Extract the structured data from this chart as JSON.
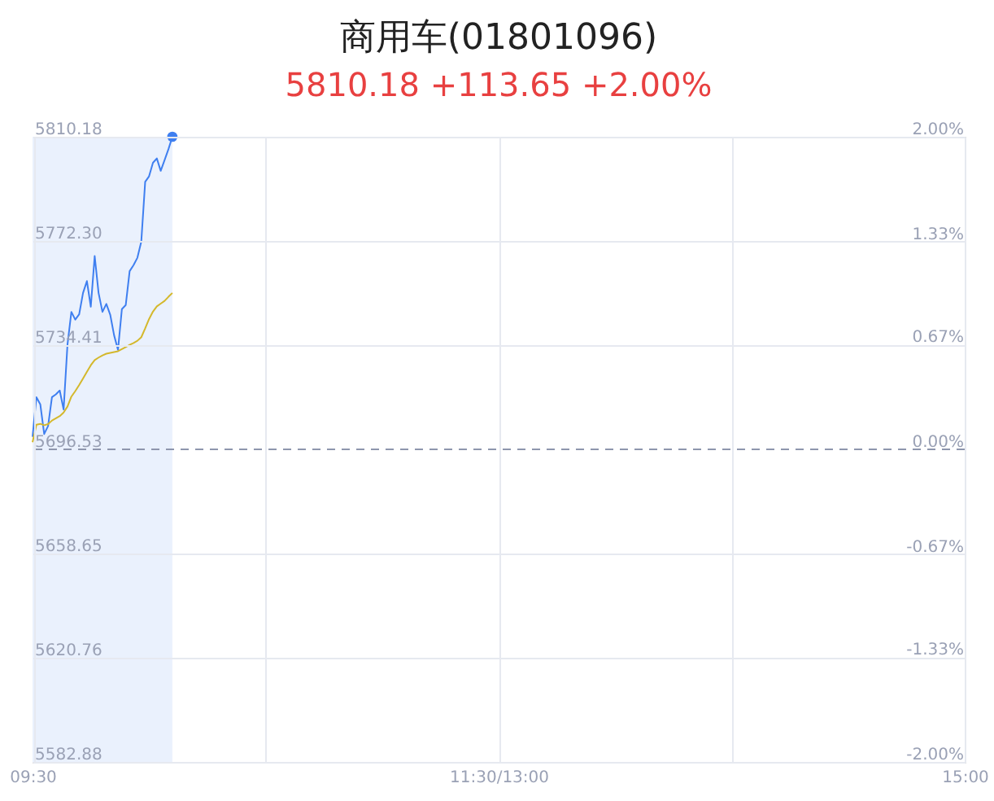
{
  "chart_data": {
    "type": "line",
    "title": "商用车(01801096)",
    "subtitle": "5810.18 +113.65 +2.00%",
    "categories": [
      "09:30",
      null,
      null,
      null,
      null,
      null,
      null,
      null,
      null,
      null,
      null,
      null,
      null,
      null,
      null,
      null,
      null,
      null,
      null,
      null,
      null,
      null,
      null,
      null,
      null,
      null,
      null,
      null,
      null,
      null,
      null,
      null,
      null,
      null,
      null,
      null,
      null,
      null,
      null,
      null,
      null,
      null,
      null,
      null,
      null,
      null,
      null,
      null,
      null,
      null,
      null,
      null,
      null,
      null,
      null,
      null,
      null,
      null,
      null,
      null,
      null,
      null,
      null,
      null,
      null,
      null,
      null,
      null,
      null,
      null,
      null,
      null,
      null,
      null,
      null,
      null,
      null,
      null,
      null,
      null,
      null,
      null,
      null,
      null,
      null,
      null,
      null,
      null,
      null,
      null,
      null,
      null,
      null,
      null,
      null,
      null,
      null,
      null,
      null,
      null,
      null,
      null,
      null,
      null,
      null,
      null,
      null,
      null,
      null,
      null,
      null,
      null,
      null,
      null,
      null,
      null,
      null,
      null,
      null,
      null,
      "11:30/13:00",
      null,
      null,
      null,
      null,
      null,
      null,
      null,
      null,
      null,
      null,
      null,
      null,
      null,
      null,
      null,
      null,
      null,
      null,
      null,
      null,
      null,
      null,
      null,
      null,
      null,
      null,
      null,
      null,
      null,
      null,
      null,
      null,
      null,
      null,
      null,
      null,
      null,
      null,
      null,
      null,
      null,
      null,
      null,
      null,
      null,
      null,
      null,
      null,
      null,
      null,
      null,
      null,
      null,
      null,
      null,
      null,
      null,
      null,
      null,
      null,
      null,
      null,
      null,
      null,
      null,
      null,
      null,
      null,
      null,
      null,
      null,
      null,
      null,
      null,
      null,
      null,
      null,
      null,
      null,
      null,
      null,
      null,
      null,
      null,
      null,
      null,
      null,
      null,
      null,
      null,
      null,
      null,
      null,
      null,
      null,
      null,
      null,
      null,
      null,
      null,
      null,
      null,
      null,
      null,
      null,
      null,
      null,
      null,
      null,
      null,
      null,
      null,
      null,
      null,
      null,
      null,
      null,
      null,
      null,
      "15:00"
    ],
    "ylim": [
      5582.88,
      5810.18
    ],
    "yticks": [
      {
        "value": 5582.88,
        "label": "5582.88"
      },
      {
        "value": 5620.76,
        "label": "5620.76"
      },
      {
        "value": 5658.65,
        "label": "5658.65"
      },
      {
        "value": 5696.53,
        "label": "5696.53"
      },
      {
        "value": 5734.41,
        "label": "5734.41"
      },
      {
        "value": 5772.3,
        "label": "5772.30"
      },
      {
        "value": 5810.18,
        "label": "5810.18"
      }
    ],
    "y2lim": [
      -2,
      2
    ],
    "y2ticks": [
      {
        "value": -2,
        "label": "-2.00%"
      },
      {
        "value": -1.33,
        "label": "-1.33%"
      },
      {
        "value": -0.67,
        "label": "-0.67%"
      },
      {
        "value": 0,
        "label": "0.00%"
      },
      {
        "value": 0.67,
        "label": "0.67%"
      },
      {
        "value": 1.33,
        "label": "1.33%"
      },
      {
        "value": 2,
        "label": "2.00%"
      }
    ],
    "grid": true,
    "line_style": "solid",
    "series": [
      {
        "color": "#3f7ff0",
        "values": [
          5701.1,
          5715.5,
          5712.9,
          5702.1,
          5705.0,
          5715.5,
          5716.5,
          5717.9,
          5711.0,
          5734.7,
          5746.5,
          5743.7,
          5745.6,
          5753.4,
          5757.7,
          5748.4,
          5766.8,
          5753.4,
          5746.5,
          5749.4,
          5745.5,
          5738.0,
          5732.7,
          5747.5,
          5749.0,
          5761.3,
          5763.5,
          5766.2,
          5772.1,
          5793.8,
          5795.8,
          5800.7,
          5802.3,
          5797.8,
          5801.7,
          5805.7,
          5810.18,
          null,
          null,
          null,
          null,
          null,
          null,
          null,
          null,
          null,
          null,
          null,
          null,
          null,
          null,
          null,
          null,
          null,
          null,
          null,
          null,
          null,
          null,
          null,
          null,
          null,
          null,
          null,
          null,
          null,
          null,
          null,
          null,
          null,
          null,
          null,
          null,
          null,
          null,
          null,
          null,
          null,
          null,
          null,
          null,
          null,
          null,
          null,
          null,
          null,
          null,
          null,
          null,
          null,
          null,
          null,
          null,
          null,
          null,
          null,
          null,
          null,
          null,
          null,
          null,
          null,
          null,
          null,
          null,
          null,
          null,
          null,
          null,
          null,
          null,
          null,
          null,
          null,
          null,
          null,
          null,
          null,
          null,
          null,
          null,
          null,
          null,
          null,
          null,
          null,
          null,
          null,
          null,
          null,
          null,
          null,
          null,
          null,
          null,
          null,
          null,
          null,
          null,
          null,
          null,
          null,
          null,
          null,
          null,
          null,
          null,
          null,
          null,
          null,
          null,
          null,
          null,
          null,
          null,
          null,
          null,
          null,
          null,
          null,
          null,
          null,
          null,
          null,
          null,
          null,
          null,
          null,
          null,
          null,
          null,
          null,
          null,
          null,
          null,
          null,
          null,
          null,
          null,
          null,
          null,
          null,
          null,
          null,
          null,
          null,
          null,
          null,
          null,
          null,
          null,
          null,
          null,
          null,
          null,
          null,
          null,
          null,
          null,
          null,
          null,
          null,
          null,
          null,
          null,
          null,
          null,
          null,
          null,
          null,
          null,
          null,
          null,
          null,
          null,
          null,
          null,
          null,
          null,
          null,
          null,
          null,
          null,
          null,
          null,
          null,
          null,
          null,
          null,
          null,
          null,
          null,
          null,
          null,
          null,
          null,
          null,
          null,
          null,
          null,
          null
        ]
      },
      {
        "color": "#d4b82c",
        "values": [
          5699.1,
          5705.5,
          5705.8,
          5705.3,
          5705.7,
          5707.0,
          5707.8,
          5708.6,
          5709.9,
          5712.1,
          5715.7,
          5717.7,
          5719.9,
          5722.3,
          5724.7,
          5727.1,
          5729.0,
          5729.9,
          5730.7,
          5731.3,
          5731.6,
          5731.9,
          5732.2,
          5733.0,
          5733.7,
          5734.5,
          5735.2,
          5736.0,
          5737.3,
          5740.5,
          5743.9,
          5746.6,
          5748.5,
          5749.5,
          5750.5,
          5752.0,
          5753.4,
          null,
          null,
          null,
          null,
          null,
          null,
          null,
          null,
          null,
          null,
          null,
          null,
          null,
          null,
          null,
          null,
          null,
          null,
          null,
          null,
          null,
          null,
          null,
          null,
          null,
          null,
          null,
          null,
          null,
          null,
          null,
          null,
          null,
          null,
          null,
          null,
          null,
          null,
          null,
          null,
          null,
          null,
          null,
          null,
          null,
          null,
          null,
          null,
          null,
          null,
          null,
          null,
          null,
          null,
          null,
          null,
          null,
          null,
          null,
          null,
          null,
          null,
          null,
          null,
          null,
          null,
          null,
          null,
          null,
          null,
          null,
          null,
          null,
          null,
          null,
          null,
          null,
          null,
          null,
          null,
          null,
          null,
          null,
          null,
          null,
          null,
          null,
          null,
          null,
          null,
          null,
          null,
          null,
          null,
          null,
          null,
          null,
          null,
          null,
          null,
          null,
          null,
          null,
          null,
          null,
          null,
          null,
          null,
          null,
          null,
          null,
          null,
          null,
          null,
          null,
          null,
          null,
          null,
          null,
          null,
          null,
          null,
          null,
          null,
          null,
          null,
          null,
          null,
          null,
          null,
          null,
          null,
          null,
          null,
          null,
          null,
          null,
          null,
          null,
          null,
          null,
          null,
          null,
          null,
          null,
          null,
          null,
          null,
          null,
          null,
          null,
          null,
          null,
          null,
          null,
          null,
          null,
          null,
          null,
          null,
          null,
          null,
          null,
          null,
          null,
          null,
          null,
          null,
          null,
          null,
          null,
          null,
          null,
          null,
          null,
          null,
          null,
          null,
          null,
          null,
          null,
          null,
          null,
          null,
          null,
          null,
          null,
          null,
          null,
          null,
          null,
          null,
          null,
          null,
          null,
          null,
          null,
          null,
          null,
          null,
          null,
          null,
          null,
          null
        ]
      },
      {
        "type": "scatter",
        "color": "#3f7ff0",
        "values": [
          null,
          null,
          null,
          null,
          null,
          null,
          null,
          null,
          null,
          null,
          null,
          null,
          null,
          null,
          null,
          null,
          null,
          null,
          null,
          null,
          null,
          null,
          null,
          null,
          null,
          null,
          null,
          null,
          null,
          null,
          null,
          null,
          null,
          null,
          null,
          null,
          5810.18,
          null,
          null,
          null,
          null,
          null,
          null,
          null,
          null,
          null,
          null,
          null,
          null,
          null,
          null,
          null,
          null,
          null,
          null,
          null,
          null,
          null,
          null,
          null,
          null,
          null,
          null,
          null,
          null,
          null,
          null,
          null,
          null,
          null,
          null,
          null,
          null,
          null,
          null,
          null,
          null,
          null,
          null,
          null,
          null,
          null,
          null,
          null,
          null,
          null,
          null,
          null,
          null,
          null,
          null,
          null,
          null,
          null,
          null,
          null,
          null,
          null,
          null,
          null,
          null,
          null,
          null,
          null,
          null,
          null,
          null,
          null,
          null,
          null,
          null,
          null,
          null,
          null,
          null,
          null,
          null,
          null,
          null,
          null,
          null,
          null,
          null,
          null,
          null,
          null,
          null,
          null,
          null,
          null,
          null,
          null,
          null,
          null,
          null,
          null,
          null,
          null,
          null,
          null,
          null,
          null,
          null,
          null,
          null,
          null,
          null,
          null,
          null,
          null,
          null,
          null,
          null,
          null,
          null,
          null,
          null,
          null,
          null,
          null,
          null,
          null,
          null,
          null,
          null,
          null,
          null,
          null,
          null,
          null,
          null,
          null,
          null,
          null,
          null,
          null,
          null,
          null,
          null,
          null,
          null,
          null,
          null,
          null,
          null,
          null,
          null,
          null,
          null,
          null,
          null,
          null,
          null,
          null,
          null,
          null,
          null,
          null,
          null,
          null,
          null,
          null,
          null,
          null,
          null,
          null,
          null,
          null,
          null,
          null,
          null,
          null,
          null,
          null,
          null,
          null,
          null,
          null,
          null,
          null,
          null,
          null,
          null,
          null,
          null,
          null,
          null,
          null,
          null,
          null,
          null,
          null,
          null,
          null,
          null,
          null,
          null,
          null,
          null,
          null,
          null
        ]
      }
    ],
    "ref_lines": [
      {
        "axis": "y",
        "value": 5696.53,
        "color": "#8e96ad",
        "line_style": "dashed"
      }
    ]
  }
}
